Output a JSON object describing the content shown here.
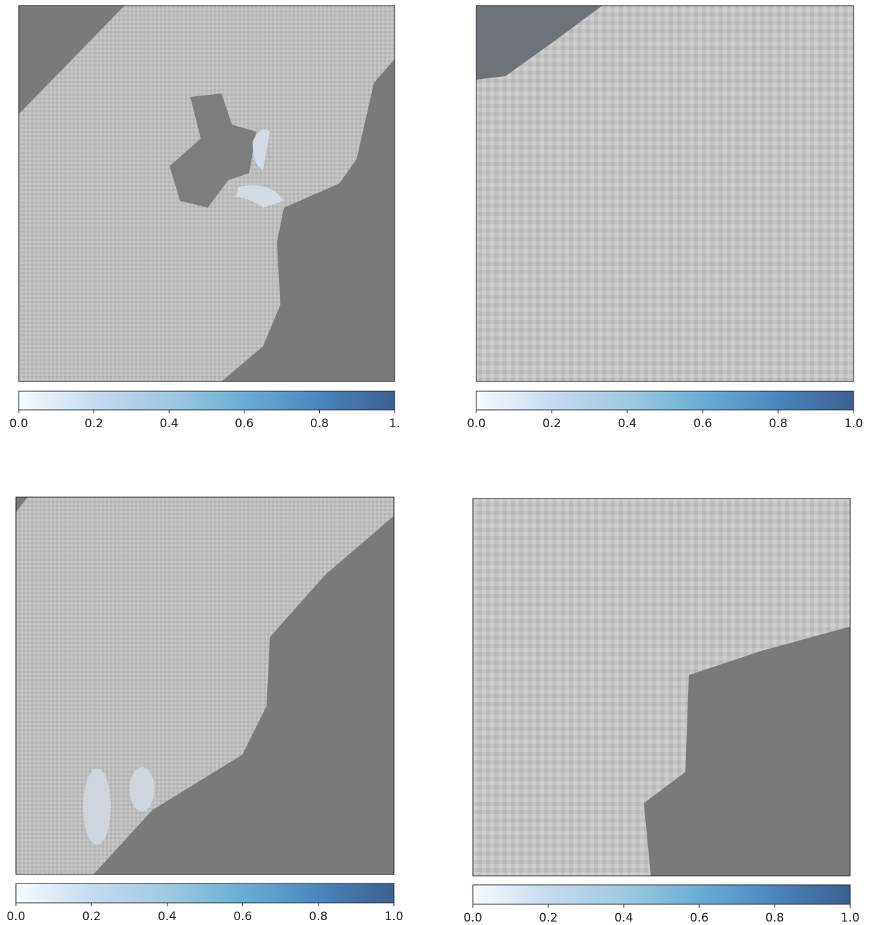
{
  "chart_data": [
    {
      "type": "heatmap-colorbar",
      "clim": [
        0,
        1
      ],
      "colorbar_colors": [
        "#f7fbff",
        "#c6dbef",
        "#9ecae1",
        "#6aaed6",
        "#4a86bd",
        "#3b5f8f"
      ],
      "cticks": [
        {
          "value": 0,
          "label": "0.0"
        },
        0.2,
        0.4,
        0.6,
        0.8,
        {
          "value": 1,
          "label": "1."
        }
      ]
    },
    {
      "type": "heatmap-colorbar",
      "clim": [
        0,
        1
      ],
      "colorbar_colors": [
        "#f7fbff",
        "#c6dbef",
        "#9ecae1",
        "#6aaed6",
        "#4a86bd",
        "#3b5f8f"
      ],
      "cticks": [
        {
          "value": 0,
          "label": "0.0"
        },
        0.2,
        0.4,
        0.6,
        0.8,
        {
          "value": 1,
          "label": "1.0"
        }
      ]
    },
    {
      "type": "heatmap-colorbar",
      "clim": [
        0,
        1
      ],
      "colorbar_colors": [
        "#f7fbff",
        "#c6dbef",
        "#9ecae1",
        "#6aaed6",
        "#4a86bd",
        "#3b5f8f"
      ],
      "cticks": [
        {
          "value": 0,
          "label": "0.0"
        },
        0.2,
        0.4,
        0.6,
        0.8,
        {
          "value": 1,
          "label": "1.0"
        }
      ]
    },
    {
      "type": "heatmap-colorbar",
      "clim": [
        0,
        1
      ],
      "colorbar_colors": [
        "#f7fbff",
        "#c6dbef",
        "#9ecae1",
        "#6aaed6",
        "#4a86bd",
        "#3b5f8f"
      ],
      "cticks": [
        {
          "value": 0,
          "label": "0.0"
        },
        0.2,
        0.4,
        0.6,
        0.8,
        {
          "value": 1,
          "label": "1.0"
        }
      ]
    }
  ]
}
